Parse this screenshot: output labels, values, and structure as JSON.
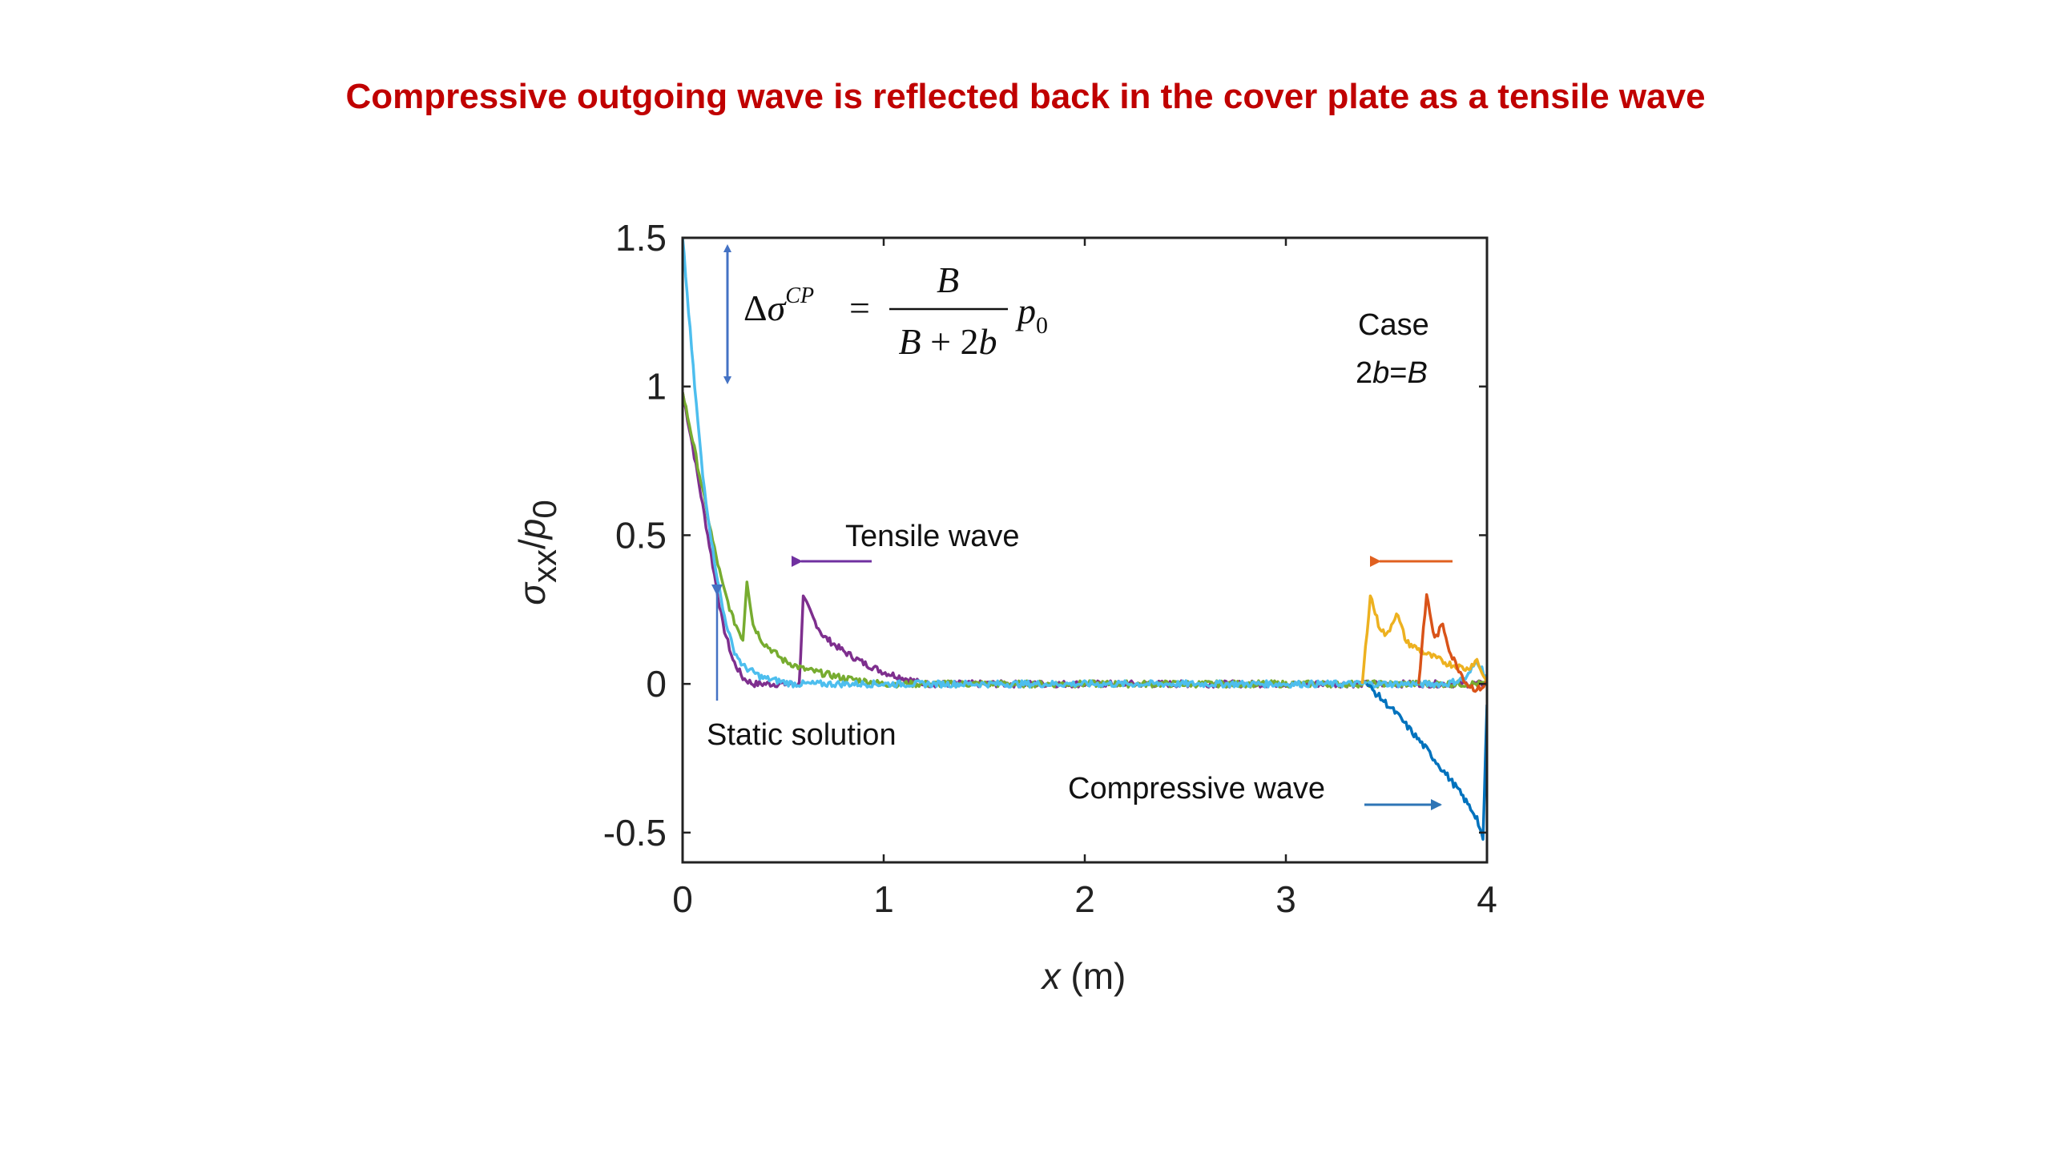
{
  "slide": {
    "title": "Compressive outgoing wave is reflected back in the cover plate as a tensile wave"
  },
  "chart_data": {
    "type": "line",
    "xlabel": "x (m)",
    "ylabel": "σxx/p0",
    "xlim": [
      0,
      4
    ],
    "ylim": [
      -0.6,
      1.5
    ],
    "x_ticks": [
      0,
      1,
      2,
      3,
      4
    ],
    "x_tick_labels": [
      "0",
      "1",
      "2",
      "3",
      "4"
    ],
    "y_ticks": [
      -0.5,
      0,
      0.5,
      1,
      1.5
    ],
    "y_tick_labels": [
      "-0.5",
      "0",
      "0.5",
      "1",
      "1.5"
    ],
    "grid": false,
    "series": [
      {
        "color": "#7e2f8e",
        "points": [
          [
            0,
            0.98
          ],
          [
            0.05,
            0.8
          ],
          [
            0.1,
            0.6
          ],
          [
            0.15,
            0.4
          ],
          [
            0.2,
            0.2
          ],
          [
            0.25,
            0.08
          ],
          [
            0.3,
            0.02
          ],
          [
            0.35,
            0.0
          ],
          [
            0.58,
            0.0
          ],
          [
            0.6,
            0.29
          ],
          [
            0.65,
            0.22
          ],
          [
            0.7,
            0.16
          ],
          [
            0.8,
            0.11
          ],
          [
            0.9,
            0.07
          ],
          [
            1.0,
            0.04
          ],
          [
            1.1,
            0.02
          ],
          [
            1.2,
            0.0
          ],
          [
            4.0,
            0.0
          ]
        ],
        "noise": true
      },
      {
        "color": "#77ac30",
        "points": [
          [
            0,
            0.98
          ],
          [
            0.05,
            0.82
          ],
          [
            0.1,
            0.65
          ],
          [
            0.15,
            0.48
          ],
          [
            0.2,
            0.33
          ],
          [
            0.25,
            0.22
          ],
          [
            0.3,
            0.15
          ],
          [
            0.32,
            0.35
          ],
          [
            0.35,
            0.2
          ],
          [
            0.4,
            0.14
          ],
          [
            0.5,
            0.08
          ],
          [
            0.6,
            0.05
          ],
          [
            0.8,
            0.02
          ],
          [
            1.0,
            0.0
          ],
          [
            4.0,
            0.0
          ]
        ],
        "noise": true
      },
      {
        "color": "#4dbeee",
        "points": [
          [
            0,
            1.5
          ],
          [
            0.03,
            1.25
          ],
          [
            0.06,
            1.0
          ],
          [
            0.1,
            0.7
          ],
          [
            0.15,
            0.45
          ],
          [
            0.2,
            0.25
          ],
          [
            0.25,
            0.12
          ],
          [
            0.3,
            0.06
          ],
          [
            0.4,
            0.02
          ],
          [
            0.55,
            0.0
          ],
          [
            3.8,
            0.0
          ],
          [
            3.9,
            0.02
          ],
          [
            3.95,
            0.08
          ],
          [
            4.0,
            0.02
          ]
        ],
        "noise": true
      },
      {
        "color": "#0072bd",
        "points": [
          [
            3.4,
            0.0
          ],
          [
            3.55,
            -0.1
          ],
          [
            3.7,
            -0.22
          ],
          [
            3.85,
            -0.35
          ],
          [
            3.95,
            -0.45
          ],
          [
            3.98,
            -0.53
          ],
          [
            4.0,
            -0.07
          ]
        ],
        "noise": true
      },
      {
        "color": "#edb120",
        "points": [
          [
            3.38,
            0.0
          ],
          [
            3.42,
            0.3
          ],
          [
            3.46,
            0.2
          ],
          [
            3.5,
            0.16
          ],
          [
            3.55,
            0.24
          ],
          [
            3.6,
            0.14
          ],
          [
            3.7,
            0.1
          ],
          [
            3.8,
            0.07
          ],
          [
            3.9,
            0.05
          ],
          [
            3.95,
            0.08
          ],
          [
            4.0,
            0.0
          ]
        ],
        "noise": true
      },
      {
        "color": "#d95319",
        "points": [
          [
            3.66,
            0.0
          ],
          [
            3.7,
            0.3
          ],
          [
            3.74,
            0.15
          ],
          [
            3.78,
            0.2
          ],
          [
            3.82,
            0.1
          ],
          [
            3.86,
            0.05
          ],
          [
            3.9,
            0.0
          ],
          [
            3.95,
            -0.02
          ],
          [
            4.0,
            0.0
          ]
        ],
        "noise": true
      }
    ],
    "annotations": {
      "tensile_wave": "Tensile wave",
      "static_solution": "Static solution",
      "compressive_wave": "Compressive wave",
      "case_line1": "Case",
      "case_line2": "2b=B",
      "formula": "Δσ^CP = B/(B+2b) p0"
    },
    "colors": {
      "axis": "#222222",
      "formula_arrow": "#4472c4",
      "tensile_arrow": "#7030a0",
      "static_arrow": "#4472c4",
      "compressive_arrow": "#2e75b6",
      "orange_arrow": "#e06020"
    }
  }
}
